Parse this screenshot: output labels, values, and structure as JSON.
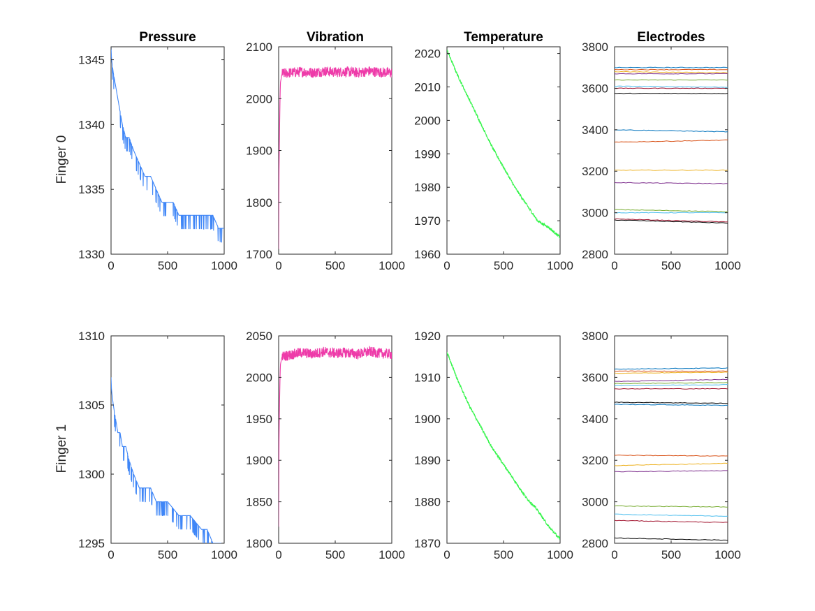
{
  "colors": {
    "pressure": "#3f86f7",
    "vibration": "#ee3ba9",
    "temperature": "#34f54a",
    "electrodes": [
      "#0072bd",
      "#d95319",
      "#edb120",
      "#7e2f8e",
      "#77ac30",
      "#4dbeee",
      "#a2142f",
      "#000000"
    ]
  },
  "chart_data": [
    {
      "type": "line",
      "row_label": "Finger 0",
      "title": "Pressure",
      "xlabel": "",
      "ylabel": "",
      "xlim": [
        0,
        1000
      ],
      "ylim": [
        1330,
        1346
      ],
      "xticks": [
        0,
        500,
        1000
      ],
      "yticks": [
        1330,
        1335,
        1340,
        1345
      ],
      "color_key": "pressure",
      "series": [
        {
          "x": [
            0,
            5,
            20,
            40,
            60,
            80,
            100,
            130,
            160,
            200,
            250,
            300,
            350,
            400,
            450,
            500,
            550,
            600,
            700,
            800,
            900,
            950,
            1000
          ],
          "y": [
            1346,
            1345,
            1344,
            1343,
            1342,
            1341,
            1340,
            1339,
            1339,
            1338,
            1337,
            1336,
            1336,
            1335,
            1334,
            1334,
            1334,
            1333,
            1333,
            1333,
            1333,
            1332,
            1332
          ]
        }
      ]
    },
    {
      "type": "line",
      "title": "Vibration",
      "xlabel": "",
      "ylabel": "",
      "xlim": [
        0,
        1000
      ],
      "ylim": [
        1700,
        2100
      ],
      "xticks": [
        0,
        500,
        1000
      ],
      "yticks": [
        1700,
        1800,
        1900,
        2000,
        2100
      ],
      "color_key": "vibration",
      "series": [
        {
          "x": [
            0,
            5,
            15,
            30,
            100,
            200,
            300,
            400,
            500,
            600,
            700,
            800,
            900,
            1000
          ],
          "y": [
            1710,
            1900,
            2030,
            2048,
            2050,
            2052,
            2050,
            2053,
            2051,
            2052,
            2050,
            2053,
            2051,
            2050
          ]
        }
      ]
    },
    {
      "type": "line",
      "title": "Temperature",
      "xlabel": "",
      "ylabel": "",
      "xlim": [
        0,
        1000
      ],
      "ylim": [
        1960,
        2022
      ],
      "xticks": [
        0,
        500,
        1000
      ],
      "yticks": [
        1960,
        1970,
        1980,
        1990,
        2000,
        2010,
        2020
      ],
      "color_key": "temperature",
      "series": [
        {
          "x": [
            0,
            100,
            200,
            300,
            400,
            500,
            600,
            700,
            800,
            900,
            1000
          ],
          "y": [
            2021,
            2013,
            2006,
            1999,
            1992,
            1986,
            1980,
            1975,
            1970,
            1968,
            1965
          ]
        }
      ]
    },
    {
      "type": "line",
      "title": "Electrodes",
      "xlabel": "",
      "ylabel": "",
      "xlim": [
        0,
        1000
      ],
      "ylim": [
        2800,
        3800
      ],
      "xticks": [
        0,
        500,
        1000
      ],
      "yticks": [
        2800,
        3000,
        3200,
        3400,
        3600,
        3800
      ],
      "color_key": "electrodes",
      "series": [
        {
          "x": [
            0,
            1000
          ],
          "y": [
            3700,
            3700
          ]
        },
        {
          "x": [
            0,
            1000
          ],
          "y": [
            3690,
            3690
          ]
        },
        {
          "x": [
            0,
            1000
          ],
          "y": [
            3680,
            3675
          ]
        },
        {
          "x": [
            0,
            1000
          ],
          "y": [
            3670,
            3670
          ]
        },
        {
          "x": [
            0,
            1000
          ],
          "y": [
            3640,
            3640
          ]
        },
        {
          "x": [
            0,
            1000
          ],
          "y": [
            3610,
            3605
          ]
        },
        {
          "x": [
            0,
            1000
          ],
          "y": [
            3600,
            3600
          ]
        },
        {
          "x": [
            0,
            1000
          ],
          "y": [
            3575,
            3575
          ]
        },
        {
          "x": [
            0,
            1000
          ],
          "y": [
            3400,
            3390
          ]
        },
        {
          "x": [
            0,
            1000
          ],
          "y": [
            3340,
            3350
          ]
        },
        {
          "x": [
            0,
            1000
          ],
          "y": [
            3205,
            3205
          ]
        },
        {
          "x": [
            0,
            1000
          ],
          "y": [
            3145,
            3140
          ]
        },
        {
          "x": [
            0,
            1000
          ],
          "y": [
            3015,
            3005
          ]
        },
        {
          "x": [
            0,
            1000
          ],
          "y": [
            3000,
            3000
          ]
        },
        {
          "x": [
            0,
            1000
          ],
          "y": [
            2970,
            2955
          ]
        },
        {
          "x": [
            0,
            1000
          ],
          "y": [
            2965,
            2950
          ]
        }
      ]
    },
    {
      "type": "line",
      "row_label": "Finger 1",
      "title": "",
      "xlabel": "",
      "ylabel": "",
      "xlim": [
        0,
        1000
      ],
      "ylim": [
        1295,
        1310
      ],
      "xticks": [
        0,
        500,
        1000
      ],
      "yticks": [
        1295,
        1300,
        1305,
        1310
      ],
      "color_key": "pressure",
      "series": [
        {
          "x": [
            0,
            5,
            20,
            40,
            60,
            80,
            100,
            130,
            160,
            200,
            250,
            300,
            350,
            400,
            450,
            500,
            600,
            700,
            800,
            850,
            900,
            1000
          ],
          "y": [
            1307,
            1306,
            1305,
            1304,
            1303,
            1303,
            1302,
            1302,
            1301,
            1300,
            1299,
            1299,
            1299,
            1298,
            1298,
            1298,
            1297,
            1297,
            1296,
            1296,
            1295,
            1295
          ]
        }
      ]
    },
    {
      "type": "line",
      "title": "",
      "xlabel": "",
      "ylabel": "",
      "xlim": [
        0,
        1000
      ],
      "ylim": [
        1800,
        2050
      ],
      "xticks": [
        0,
        500,
        1000
      ],
      "yticks": [
        1800,
        1850,
        1900,
        1950,
        2000,
        2050
      ],
      "color_key": "vibration",
      "series": [
        {
          "x": [
            0,
            5,
            15,
            30,
            100,
            200,
            300,
            400,
            500,
            600,
            700,
            800,
            900,
            1000
          ],
          "y": [
            1820,
            1950,
            2015,
            2025,
            2027,
            2030,
            2028,
            2031,
            2029,
            2030,
            2028,
            2031,
            2029,
            2028
          ]
        }
      ]
    },
    {
      "type": "line",
      "title": "",
      "xlabel": "",
      "ylabel": "",
      "xlim": [
        0,
        1000
      ],
      "ylim": [
        1870,
        1920
      ],
      "xticks": [
        0,
        500,
        1000
      ],
      "yticks": [
        1870,
        1880,
        1890,
        1900,
        1910,
        1920
      ],
      "color_key": "temperature",
      "series": [
        {
          "x": [
            0,
            100,
            200,
            300,
            400,
            500,
            600,
            700,
            800,
            900,
            1000
          ],
          "y": [
            1916,
            1909,
            1903,
            1898,
            1893,
            1889,
            1885,
            1881,
            1878,
            1874,
            1871
          ]
        }
      ]
    },
    {
      "type": "line",
      "title": "",
      "xlabel": "",
      "ylabel": "",
      "xlim": [
        0,
        1000
      ],
      "ylim": [
        2800,
        3800
      ],
      "xticks": [
        0,
        500,
        1000
      ],
      "yticks": [
        2800,
        3000,
        3200,
        3400,
        3600,
        3800
      ],
      "color_key": "electrodes",
      "series": [
        {
          "x": [
            0,
            1000
          ],
          "y": [
            3640,
            3645
          ]
        },
        {
          "x": [
            0,
            1000
          ],
          "y": [
            3630,
            3630
          ]
        },
        {
          "x": [
            0,
            1000
          ],
          "y": [
            3620,
            3625
          ]
        },
        {
          "x": [
            0,
            1000
          ],
          "y": [
            3580,
            3590
          ]
        },
        {
          "x": [
            0,
            1000
          ],
          "y": [
            3570,
            3575
          ]
        },
        {
          "x": [
            0,
            1000
          ],
          "y": [
            3560,
            3565
          ]
        },
        {
          "x": [
            0,
            1000
          ],
          "y": [
            3545,
            3545
          ]
        },
        {
          "x": [
            0,
            1000
          ],
          "y": [
            3480,
            3475
          ]
        },
        {
          "x": [
            0,
            1000
          ],
          "y": [
            3470,
            3465
          ]
        },
        {
          "x": [
            0,
            1000
          ],
          "y": [
            3225,
            3220
          ]
        },
        {
          "x": [
            0,
            1000
          ],
          "y": [
            3175,
            3185
          ]
        },
        {
          "x": [
            0,
            1000
          ],
          "y": [
            3145,
            3150
          ]
        },
        {
          "x": [
            0,
            1000
          ],
          "y": [
            2980,
            2975
          ]
        },
        {
          "x": [
            0,
            1000
          ],
          "y": [
            2940,
            2930
          ]
        },
        {
          "x": [
            0,
            1000
          ],
          "y": [
            2910,
            2900
          ]
        },
        {
          "x": [
            0,
            1000
          ],
          "y": [
            2825,
            2815
          ]
        }
      ]
    }
  ]
}
